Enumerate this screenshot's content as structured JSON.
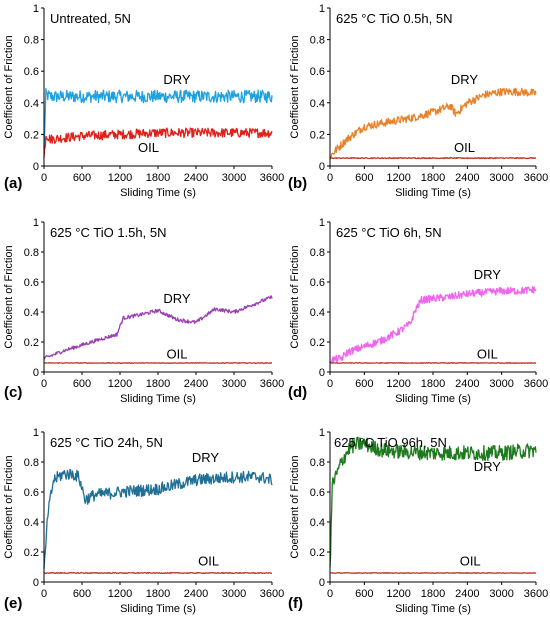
{
  "chart_data": [
    {
      "type": "line",
      "panel": "(a)",
      "title": "Untreated, 5N",
      "xlabel": "Sliding Time (s)",
      "ylabel": "Coefficient of Friction",
      "xlim": [
        0,
        3600
      ],
      "ylim": [
        0,
        1
      ],
      "xticks": [
        "0",
        "600",
        "1200",
        "1800",
        "2400",
        "3000",
        "3600"
      ],
      "yticks": [
        "0",
        "0.2",
        "0.4",
        "0.6",
        "0.8",
        "1"
      ],
      "series": [
        {
          "name": "DRY",
          "color": "#1da1e0",
          "noise": 0.04,
          "x": [
            0,
            30,
            100,
            600,
            1200,
            1800,
            2400,
            3000,
            3600
          ],
          "y": [
            0.1,
            0.45,
            0.44,
            0.44,
            0.44,
            0.44,
            0.44,
            0.44,
            0.44
          ]
        },
        {
          "name": "OIL",
          "color": "#e0201a",
          "noise": 0.03,
          "x": [
            0,
            30,
            100,
            600,
            1200,
            1800,
            2400,
            3000,
            3600
          ],
          "y": [
            0.05,
            0.2,
            0.17,
            0.19,
            0.2,
            0.21,
            0.21,
            0.21,
            0.21
          ]
        }
      ]
    },
    {
      "type": "line",
      "panel": "(b)",
      "title": "625 °C TiO 0.5h, 5N",
      "xlabel": "Sliding Time (s)",
      "ylabel": "Coefficient of Friction",
      "xlim": [
        0,
        3600
      ],
      "ylim": [
        0,
        1
      ],
      "xticks": [
        "0",
        "600",
        "1200",
        "1800",
        "2400",
        "3000",
        "3600"
      ],
      "yticks": [
        "0",
        "0.2",
        "0.4",
        "0.6",
        "0.8",
        "1"
      ],
      "series": [
        {
          "name": "DRY",
          "color": "#e8822a",
          "noise": 0.025,
          "x": [
            0,
            100,
            300,
            600,
            900,
            1200,
            1500,
            1800,
            2100,
            2200,
            2400,
            2700,
            3000,
            3300,
            3600
          ],
          "y": [
            0.06,
            0.1,
            0.17,
            0.25,
            0.27,
            0.29,
            0.31,
            0.34,
            0.38,
            0.33,
            0.4,
            0.45,
            0.47,
            0.47,
            0.46
          ]
        },
        {
          "name": "OIL",
          "color": "#c0392b",
          "noise": 0.003,
          "x": [
            0,
            600,
            1200,
            1800,
            2400,
            3000,
            3600
          ],
          "y": [
            0.05,
            0.05,
            0.05,
            0.05,
            0.05,
            0.05,
            0.05
          ]
        }
      ]
    },
    {
      "type": "line",
      "panel": "(c)",
      "title": "625 °C TiO 1.5h, 5N",
      "xlabel": "Sliding Time (s)",
      "ylabel": "Coefficient of Friction",
      "xlim": [
        0,
        3600
      ],
      "ylim": [
        0,
        1
      ],
      "xticks": [
        "0",
        "600",
        "1200",
        "1800",
        "2400",
        "3000",
        "3600"
      ],
      "yticks": [
        "0",
        "0.2",
        "0.4",
        "0.6",
        "0.8",
        "1"
      ],
      "series": [
        {
          "name": "DRY",
          "color": "#9a3fb0",
          "noise": 0.012,
          "x": [
            0,
            300,
            600,
            900,
            1150,
            1250,
            1500,
            1800,
            2100,
            2400,
            2700,
            3000,
            3300,
            3600
          ],
          "y": [
            0.09,
            0.14,
            0.18,
            0.22,
            0.25,
            0.36,
            0.38,
            0.41,
            0.35,
            0.33,
            0.42,
            0.4,
            0.45,
            0.5
          ]
        },
        {
          "name": "OIL",
          "color": "#c0392b",
          "noise": 0.002,
          "x": [
            0,
            600,
            1200,
            1800,
            2400,
            3000,
            3600
          ],
          "y": [
            0.06,
            0.06,
            0.06,
            0.06,
            0.06,
            0.06,
            0.06
          ]
        }
      ]
    },
    {
      "type": "line",
      "panel": "(d)",
      "title": "625 °C TiO 6h, 5N",
      "xlabel": "Sliding Time (s)",
      "ylabel": "Coefficient of Friction",
      "xlim": [
        0,
        3600
      ],
      "ylim": [
        0,
        1
      ],
      "xticks": [
        "0",
        "600",
        "1200",
        "1800",
        "2400",
        "3000",
        "3600"
      ],
      "yticks": [
        "0",
        "0.2",
        "0.4",
        "0.6",
        "0.8",
        "1"
      ],
      "series": [
        {
          "name": "DRY",
          "color": "#ee66ee",
          "noise": 0.025,
          "x": [
            0,
            200,
            300,
            600,
            900,
            1200,
            1400,
            1500,
            1600,
            1800,
            2100,
            2400,
            2700,
            3000,
            3300,
            3600
          ],
          "y": [
            0.08,
            0.09,
            0.13,
            0.17,
            0.21,
            0.27,
            0.32,
            0.42,
            0.48,
            0.49,
            0.5,
            0.52,
            0.53,
            0.54,
            0.54,
            0.55
          ]
        },
        {
          "name": "OIL",
          "color": "#c0392b",
          "noise": 0.002,
          "x": [
            0,
            600,
            1200,
            1800,
            2400,
            3000,
            3600
          ],
          "y": [
            0.06,
            0.06,
            0.06,
            0.06,
            0.06,
            0.06,
            0.06
          ]
        }
      ]
    },
    {
      "type": "line",
      "panel": "(e)",
      "title": "625 °C TiO 24h, 5N",
      "xlabel": "Sliding Time (s)",
      "ylabel": "Coefficient of Friction",
      "xlim": [
        0,
        3600
      ],
      "ylim": [
        0,
        1
      ],
      "xticks": [
        "0",
        "600",
        "1200",
        "1800",
        "2400",
        "3000",
        "3600"
      ],
      "yticks": [
        "0",
        "0.2",
        "0.4",
        "0.6",
        "0.8",
        "1"
      ],
      "series": [
        {
          "name": "DRY",
          "color": "#1f6f96",
          "noise": 0.04,
          "x": [
            0,
            60,
            150,
            300,
            450,
            550,
            650,
            800,
            1200,
            1800,
            2400,
            3000,
            3400,
            3600
          ],
          "y": [
            0.06,
            0.45,
            0.68,
            0.72,
            0.72,
            0.7,
            0.55,
            0.58,
            0.6,
            0.62,
            0.68,
            0.7,
            0.7,
            0.68
          ]
        },
        {
          "name": "OIL",
          "color": "#c0392b",
          "noise": 0.003,
          "x": [
            0,
            600,
            1200,
            1800,
            2400,
            3000,
            3600
          ],
          "y": [
            0.06,
            0.06,
            0.06,
            0.06,
            0.06,
            0.06,
            0.06
          ]
        }
      ]
    },
    {
      "type": "line",
      "panel": "(f)",
      "title": "625 °C TiO 96h, 5N",
      "xlabel": "Sliding Time (s)",
      "ylabel": "Coefficient of Friction",
      "xlim": [
        0,
        3600
      ],
      "ylim": [
        0,
        1
      ],
      "xticks": [
        "0",
        "600",
        "1200",
        "1800",
        "2400",
        "3000",
        "3600"
      ],
      "yticks": [
        "0",
        "0.2",
        "0.4",
        "0.6",
        "0.8",
        "1"
      ],
      "series": [
        {
          "name": "DRY",
          "color": "#1e7a1e",
          "noise": 0.05,
          "x": [
            0,
            40,
            100,
            200,
            350,
            500,
            600,
            900,
            1200,
            1800,
            2400,
            3000,
            3600
          ],
          "y": [
            0.05,
            0.65,
            0.7,
            0.8,
            0.9,
            0.92,
            0.92,
            0.88,
            0.87,
            0.86,
            0.86,
            0.86,
            0.88
          ]
        },
        {
          "name": "OIL",
          "color": "#c0392b",
          "noise": 0.002,
          "x": [
            0,
            600,
            1200,
            1800,
            2400,
            3000,
            3600
          ],
          "y": [
            0.06,
            0.06,
            0.06,
            0.06,
            0.06,
            0.06,
            0.06
          ]
        }
      ]
    }
  ]
}
